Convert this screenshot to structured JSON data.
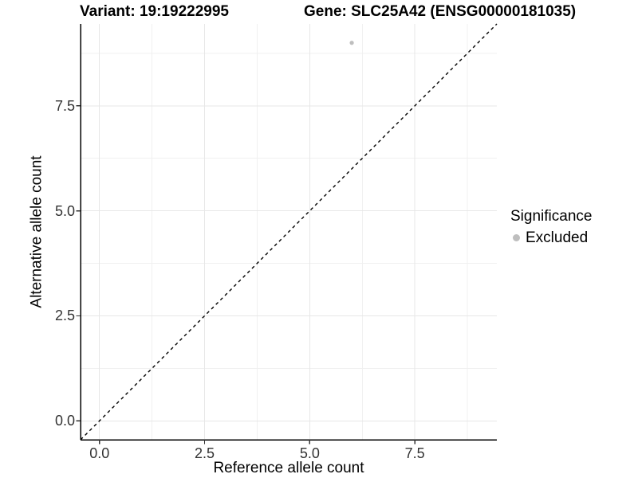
{
  "chart_data": {
    "type": "scatter",
    "title_left": "Variant: 19:19222995",
    "title_right": "Gene: SLC25A42 (ENSG00000181035)",
    "xlabel": "Reference allele count",
    "ylabel": "Alternative allele count",
    "xlim": [
      -0.45,
      9.45
    ],
    "ylim": [
      -0.45,
      9.45
    ],
    "x_ticks": {
      "values": [
        0,
        2.5,
        5,
        7.5
      ],
      "labels": [
        "0.0",
        "2.5",
        "5.0",
        "7.5"
      ]
    },
    "y_ticks": {
      "values": [
        0,
        2.5,
        5,
        7.5
      ],
      "labels": [
        "0.0",
        "2.5",
        "5.0",
        "7.5"
      ]
    },
    "minor_tick_values": [
      1.25,
      3.75,
      6.25,
      8.75
    ],
    "grid": true,
    "reference_line": {
      "type": "y=x",
      "style": "dashed",
      "color": "#000000"
    },
    "series": [
      {
        "name": "Excluded",
        "color": "#bebebe",
        "points": [
          {
            "x": 6,
            "y": 9
          }
        ]
      }
    ],
    "legend": {
      "title": "Significance",
      "position": "right",
      "entries": [
        {
          "label": "Excluded",
          "color": "#bebebe"
        }
      ]
    }
  }
}
